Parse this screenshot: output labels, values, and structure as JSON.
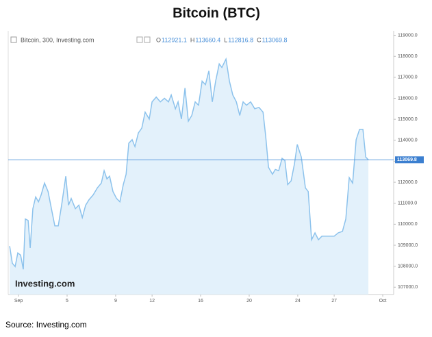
{
  "chart_data": {
    "type": "area",
    "title": "Bitcoin (BTC)",
    "legend_text": "Bitcoin, 300, Investing.com",
    "ohlc": [
      {
        "label": "O",
        "value": 112921.1
      },
      {
        "label": "H",
        "value": 113660.4
      },
      {
        "label": "L",
        "value": 112816.8
      },
      {
        "label": "C",
        "value": 113069.8
      }
    ],
    "last_price": 113069.8,
    "watermark": "Investing.com",
    "source": "Source: Investing.com",
    "x": [
      0.27,
      0.49,
      0.72,
      0.94,
      1.17,
      1.39,
      1.56,
      1.79,
      1.96,
      2.18,
      2.41,
      2.64,
      2.86,
      3.14,
      3.43,
      3.71,
      3.99,
      4.27,
      4.55,
      4.89,
      5.12,
      5.34,
      5.68,
      5.97,
      6.25,
      6.53,
      6.81,
      7.15,
      7.49,
      7.82,
      8.05,
      8.28,
      8.5,
      8.78,
      9.07,
      9.35,
      9.63,
      9.86,
      10.08,
      10.36,
      10.59,
      10.87,
      11.15,
      11.43,
      11.77,
      12.0,
      12.34,
      12.68,
      13.02,
      13.35,
      13.58,
      13.92,
      14.14,
      14.42,
      14.71,
      14.99,
      15.27,
      15.55,
      15.83,
      16.12,
      16.4,
      16.68,
      16.96,
      17.24,
      17.53,
      17.75,
      18.09,
      18.37,
      18.65,
      18.94,
      19.22,
      19.5,
      19.78,
      20.12,
      20.46,
      20.8,
      21.14,
      21.36,
      21.59,
      21.92,
      22.15,
      22.43,
      22.71,
      22.94,
      23.17,
      23.45,
      23.73,
      23.96,
      24.29,
      24.63,
      24.86,
      25.14,
      25.42,
      25.7,
      25.99,
      26.32,
      26.66,
      27.0,
      27.34,
      27.68,
      27.96,
      28.24,
      28.52,
      28.81,
      29.09,
      29.37,
      29.6,
      29.82
    ],
    "values": [
      108960,
      108140,
      107980,
      108630,
      108530,
      107850,
      110250,
      110180,
      108870,
      110740,
      111300,
      111070,
      111400,
      111960,
      111560,
      110740,
      109920,
      109920,
      110910,
      112290,
      110910,
      111230,
      110740,
      110910,
      110320,
      110910,
      111170,
      111400,
      111730,
      111960,
      112550,
      112160,
      112290,
      111560,
      111230,
      111070,
      111890,
      112380,
      113860,
      114030,
      113700,
      114350,
      114580,
      115340,
      115010,
      115830,
      116060,
      115830,
      116000,
      115830,
      116160,
      115500,
      115830,
      115010,
      116490,
      114910,
      115180,
      115830,
      115670,
      116820,
      116650,
      117310,
      115830,
      116820,
      117640,
      117470,
      117870,
      116820,
      116160,
      115830,
      115180,
      115830,
      115670,
      115830,
      115500,
      115570,
      115340,
      114190,
      112710,
      112380,
      112610,
      112550,
      113140,
      113040,
      111890,
      112060,
      112880,
      113800,
      113200,
      111730,
      111560,
      109260,
      109590,
      109260,
      109430,
      109430,
      109430,
      109430,
      109590,
      109660,
      110250,
      112220,
      111960,
      114030,
      114520,
      114520,
      113200,
      113069.8
    ],
    "color": "#8cc2ec",
    "fill": "#e3f1fb",
    "xlim": [
      0.15,
      31.9
    ],
    "xticks": [
      {
        "value": 1,
        "label": "Sep"
      },
      5,
      9,
      12,
      16,
      20,
      24,
      27,
      {
        "value": 31,
        "label": "Oct"
      }
    ],
    "ylim": [
      106650,
      119150
    ],
    "yticks": [
      {
        "value": 107000,
        "label": "107000.0"
      },
      {
        "value": 108000,
        "label": "108000.0"
      },
      {
        "value": 109000,
        "label": "109000.0"
      },
      {
        "value": 110000,
        "label": "110000.0"
      },
      {
        "value": 111000,
        "label": "111000.0"
      },
      {
        "value": 112000,
        "label": "112000.0"
      },
      {
        "value": 113000,
        "label": "113000.0"
      },
      {
        "value": 114000,
        "label": "114000.0"
      },
      {
        "value": 115000,
        "label": "115000.0"
      },
      {
        "value": 116000,
        "label": "116000.0"
      },
      {
        "value": 117000,
        "label": "117000.0"
      },
      {
        "value": 118000,
        "label": "118000.0"
      },
      {
        "value": 119000,
        "label": "119000.0"
      }
    ]
  }
}
